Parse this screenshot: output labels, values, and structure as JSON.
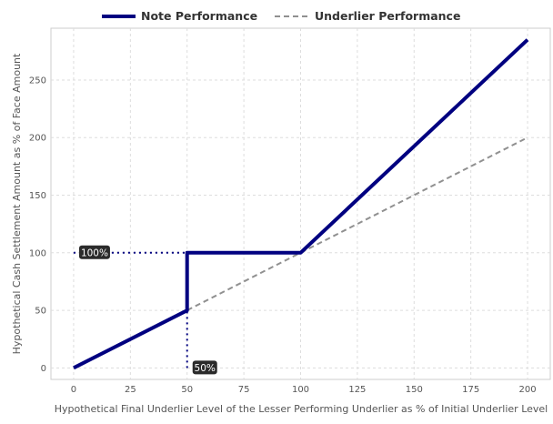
{
  "chart_data": {
    "type": "line",
    "xlabel": "Hypothetical Final Underlier Level of the Lesser Performing Underlier as % of Initial Underlier Level",
    "ylabel": "Hypothetical Cash Settlement Amount as % of Face Amount",
    "xlim": [
      -10,
      210
    ],
    "ylim": [
      -10,
      295
    ],
    "xticks": [
      0,
      25,
      50,
      75,
      100,
      125,
      150,
      175,
      200
    ],
    "yticks": [
      0,
      50,
      100,
      150,
      200,
      250
    ],
    "grid": true,
    "legend": "top-center",
    "series": [
      {
        "name": "Note Performance",
        "color": "#000080",
        "style": "solid",
        "points": [
          [
            0,
            0
          ],
          [
            50,
            49.9
          ],
          [
            50,
            100
          ],
          [
            100,
            100
          ],
          [
            200,
            285
          ]
        ]
      },
      {
        "name": "Underlier Performance",
        "color": "#909090",
        "style": "dashed",
        "points": [
          [
            0,
            0
          ],
          [
            200,
            200
          ]
        ]
      }
    ],
    "annotations": [
      {
        "text": "100%",
        "x": 0,
        "y": 100,
        "guide": "horizontal",
        "to_x": 50
      },
      {
        "text": "50%",
        "x": 50,
        "y": 0,
        "guide": "vertical",
        "to_y": 50
      }
    ]
  }
}
